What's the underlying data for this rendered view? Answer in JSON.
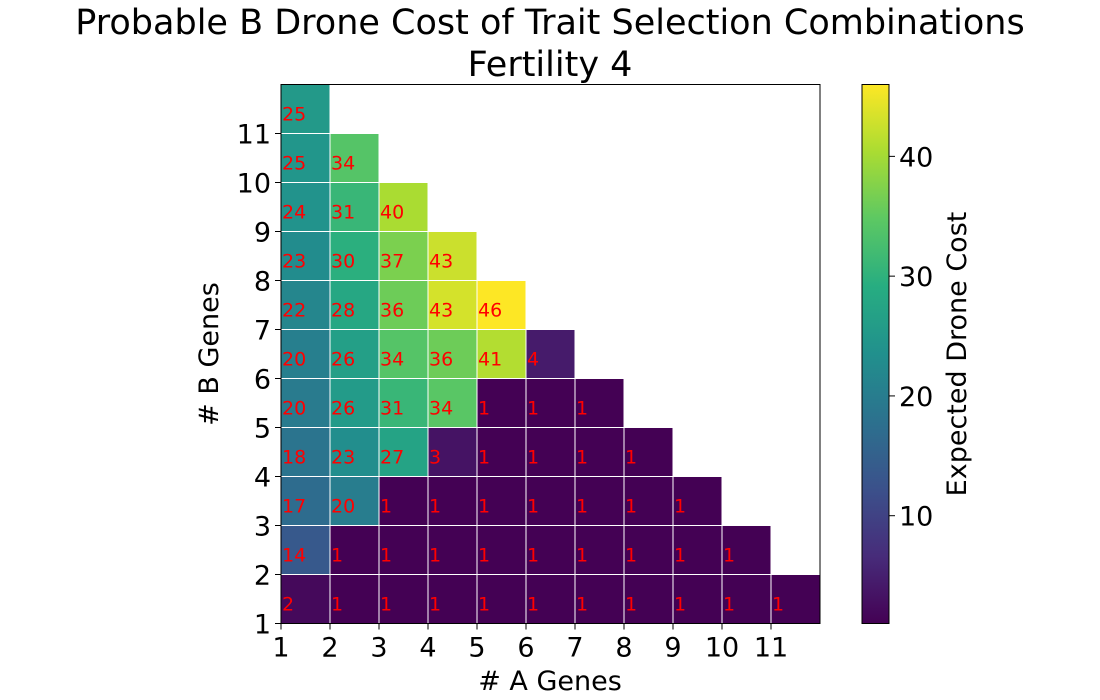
{
  "chart_data": {
    "type": "heatmap",
    "title": "Probable B Drone Cost of Trait Selection Combinations",
    "subtitle": "Fertility 4",
    "xlabel": "# A Genes",
    "ylabel": "# B Genes",
    "colorbar_label": "Expected Drone Cost",
    "colormap": "viridis",
    "x_ticks": [
      1,
      2,
      3,
      4,
      5,
      6,
      7,
      8,
      9,
      10,
      11
    ],
    "y_ticks": [
      1,
      2,
      3,
      4,
      5,
      6,
      7,
      8,
      9,
      10,
      11
    ],
    "colorbar_ticks": [
      10,
      20,
      30,
      40
    ],
    "vmin": 1,
    "vmax": 46,
    "grid": true,
    "annotation_color": "#ff0000",
    "cells": [
      {
        "a": 1,
        "b": 11,
        "label": "25",
        "value": 25.2
      },
      {
        "a": 1,
        "b": 10,
        "label": "25",
        "value": 24.6
      },
      {
        "a": 1,
        "b": 9,
        "label": "24",
        "value": 24
      },
      {
        "a": 1,
        "b": 8,
        "label": "23",
        "value": 22.8
      },
      {
        "a": 1,
        "b": 7,
        "label": "22",
        "value": 21.6
      },
      {
        "a": 1,
        "b": 6,
        "label": "20",
        "value": 20.4
      },
      {
        "a": 1,
        "b": 5,
        "label": "20",
        "value": 19.6
      },
      {
        "a": 1,
        "b": 4,
        "label": "18",
        "value": 18.4
      },
      {
        "a": 1,
        "b": 3,
        "label": "17",
        "value": 17
      },
      {
        "a": 1,
        "b": 2,
        "label": "14",
        "value": 13.6
      },
      {
        "a": 1,
        "b": 1,
        "label": "2",
        "value": 2
      },
      {
        "a": 2,
        "b": 10,
        "label": "34",
        "value": 34
      },
      {
        "a": 2,
        "b": 9,
        "label": "31",
        "value": 31
      },
      {
        "a": 2,
        "b": 8,
        "label": "30",
        "value": 29.6
      },
      {
        "a": 2,
        "b": 7,
        "label": "28",
        "value": 28
      },
      {
        "a": 2,
        "b": 6,
        "label": "26",
        "value": 26.4
      },
      {
        "a": 2,
        "b": 5,
        "label": "26",
        "value": 25.6
      },
      {
        "a": 2,
        "b": 4,
        "label": "23",
        "value": 23.2
      },
      {
        "a": 2,
        "b": 3,
        "label": "20",
        "value": 20
      },
      {
        "a": 2,
        "b": 2,
        "label": "1",
        "value": 1
      },
      {
        "a": 2,
        "b": 1,
        "label": "1",
        "value": 1
      },
      {
        "a": 3,
        "b": 9,
        "label": "40",
        "value": 40.4
      },
      {
        "a": 3,
        "b": 8,
        "label": "37",
        "value": 37
      },
      {
        "a": 3,
        "b": 7,
        "label": "36",
        "value": 36
      },
      {
        "a": 3,
        "b": 6,
        "label": "34",
        "value": 34
      },
      {
        "a": 3,
        "b": 5,
        "label": "31",
        "value": 31
      },
      {
        "a": 3,
        "b": 4,
        "label": "27",
        "value": 27.2
      },
      {
        "a": 3,
        "b": 3,
        "label": "1",
        "value": 1
      },
      {
        "a": 3,
        "b": 2,
        "label": "1",
        "value": 1
      },
      {
        "a": 3,
        "b": 1,
        "label": "1",
        "value": 1
      },
      {
        "a": 4,
        "b": 8,
        "label": "43",
        "value": 42.6
      },
      {
        "a": 4,
        "b": 7,
        "label": "43",
        "value": 43.2
      },
      {
        "a": 4,
        "b": 6,
        "label": "36",
        "value": 36
      },
      {
        "a": 4,
        "b": 5,
        "label": "34",
        "value": 34.4
      },
      {
        "a": 4,
        "b": 4,
        "label": "3",
        "value": 3.4
      },
      {
        "a": 4,
        "b": 3,
        "label": "1",
        "value": 1
      },
      {
        "a": 4,
        "b": 2,
        "label": "1",
        "value": 1
      },
      {
        "a": 4,
        "b": 1,
        "label": "1",
        "value": 1
      },
      {
        "a": 5,
        "b": 7,
        "label": "46",
        "value": 46
      },
      {
        "a": 5,
        "b": 6,
        "label": "41",
        "value": 41
      },
      {
        "a": 5,
        "b": 5,
        "label": "1",
        "value": 1
      },
      {
        "a": 5,
        "b": 4,
        "label": "1",
        "value": 1
      },
      {
        "a": 5,
        "b": 3,
        "label": "1",
        "value": 1
      },
      {
        "a": 5,
        "b": 2,
        "label": "1",
        "value": 1
      },
      {
        "a": 5,
        "b": 1,
        "label": "1",
        "value": 1
      },
      {
        "a": 6,
        "b": 6,
        "label": "4",
        "value": 4.4
      },
      {
        "a": 6,
        "b": 5,
        "label": "1",
        "value": 1
      },
      {
        "a": 6,
        "b": 4,
        "label": "1",
        "value": 1
      },
      {
        "a": 6,
        "b": 3,
        "label": "1",
        "value": 1
      },
      {
        "a": 6,
        "b": 2,
        "label": "1",
        "value": 1
      },
      {
        "a": 6,
        "b": 1,
        "label": "1",
        "value": 1
      },
      {
        "a": 7,
        "b": 5,
        "label": "1",
        "value": 1
      },
      {
        "a": 7,
        "b": 4,
        "label": "1",
        "value": 1
      },
      {
        "a": 7,
        "b": 3,
        "label": "1",
        "value": 1
      },
      {
        "a": 7,
        "b": 2,
        "label": "1",
        "value": 1
      },
      {
        "a": 7,
        "b": 1,
        "label": "1",
        "value": 1
      },
      {
        "a": 8,
        "b": 4,
        "label": "1",
        "value": 1
      },
      {
        "a": 8,
        "b": 3,
        "label": "1",
        "value": 1
      },
      {
        "a": 8,
        "b": 2,
        "label": "1",
        "value": 1
      },
      {
        "a": 8,
        "b": 1,
        "label": "1",
        "value": 1
      },
      {
        "a": 9,
        "b": 3,
        "label": "1",
        "value": 1
      },
      {
        "a": 9,
        "b": 2,
        "label": "1",
        "value": 1
      },
      {
        "a": 9,
        "b": 1,
        "label": "1",
        "value": 1
      },
      {
        "a": 10,
        "b": 2,
        "label": "1",
        "value": 1
      },
      {
        "a": 10,
        "b": 1,
        "label": "1",
        "value": 1
      },
      {
        "a": 11,
        "b": 1,
        "label": "1",
        "value": 1
      }
    ]
  }
}
